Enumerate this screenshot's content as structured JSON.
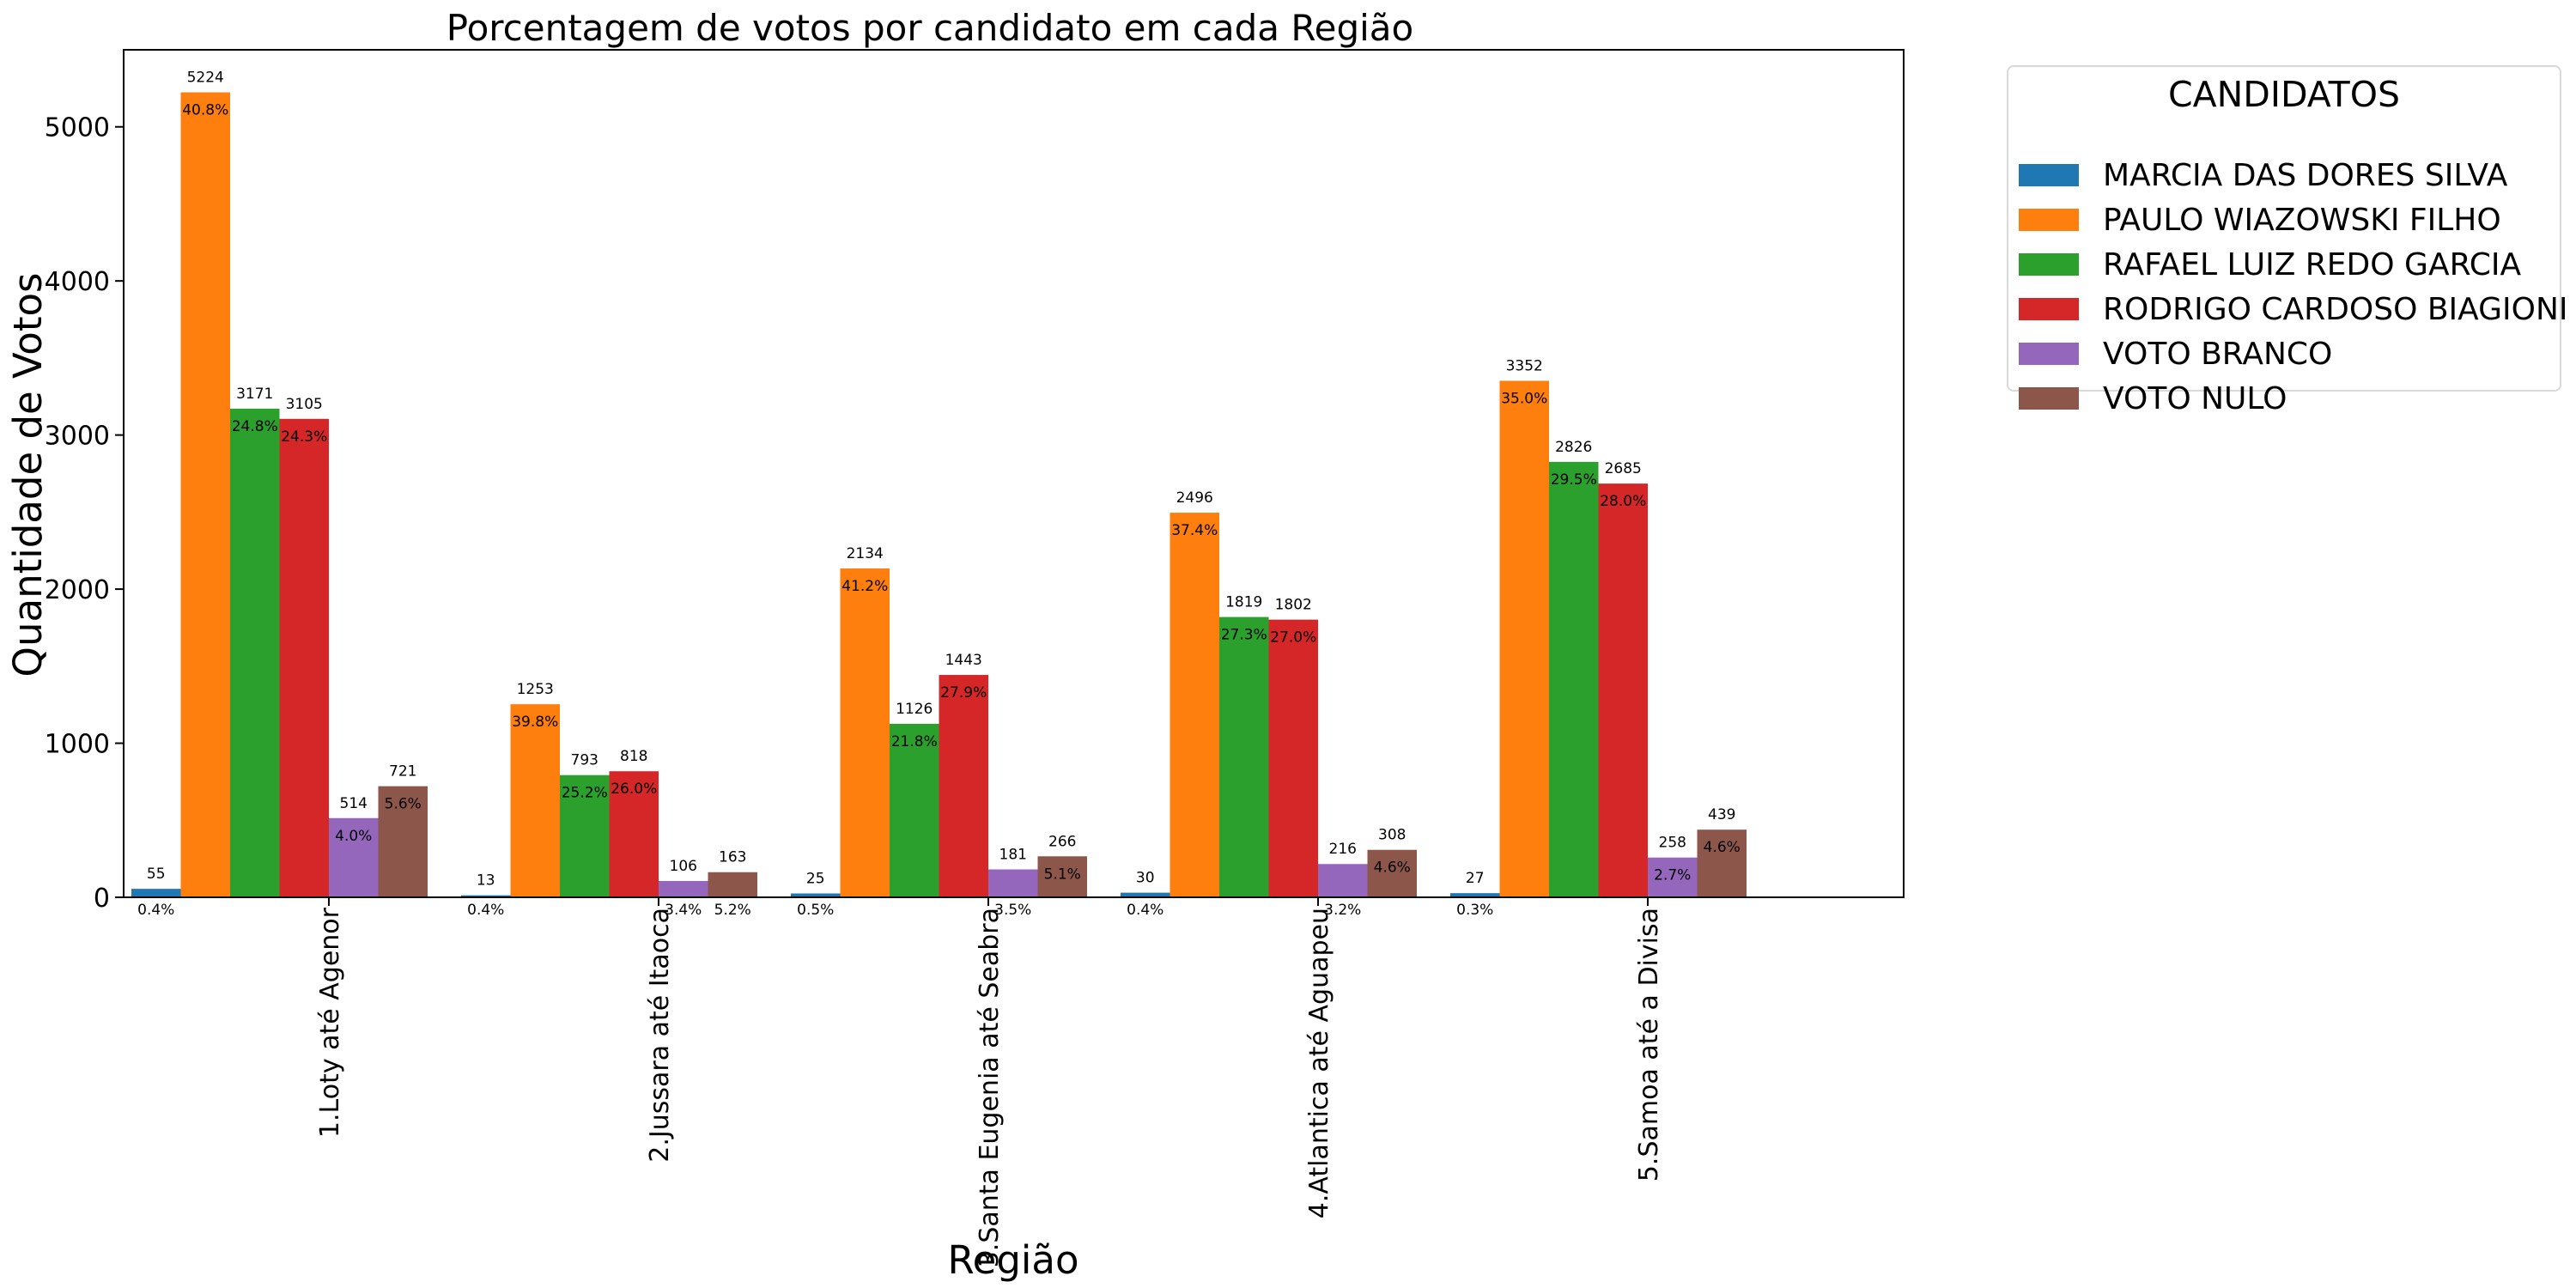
{
  "chart_data": {
    "type": "bar",
    "title": "Porcentagem de votos por candidato em cada Região",
    "xlabel": "Região",
    "ylabel": "Quantidade de Votos",
    "ylim": [
      0,
      5500
    ],
    "yticks": [
      "0",
      "1000",
      "2000",
      "3000",
      "4000",
      "5000"
    ],
    "categories": [
      "1.Loty até Agenor",
      "2.Jussara até Itaoca",
      "3.Santa Eugenia até Seabra",
      "4.Atlantica até Aguapeu",
      "5.Samoa até a Divisa"
    ],
    "legend_title": "CANDIDATOS",
    "legend_placement": "outside-right",
    "grid": false,
    "series": [
      {
        "name": "MARCIA DAS DORES SILVA",
        "color": "#1f77b4",
        "values": [
          55,
          13,
          25,
          30,
          27
        ],
        "percents": [
          "0.4%",
          "0.4%",
          "0.5%",
          "0.4%",
          "0.3%"
        ]
      },
      {
        "name": "PAULO WIAZOWSKI FILHO",
        "color": "#ff7f0e",
        "values": [
          5224,
          1253,
          2134,
          2496,
          3352
        ],
        "percents": [
          "40.8%",
          "39.8%",
          "41.2%",
          "37.4%",
          "35.0%"
        ]
      },
      {
        "name": "RAFAEL LUIZ REDO GARCIA",
        "color": "#2ca02c",
        "values": [
          3171,
          793,
          1126,
          1819,
          2826
        ],
        "percents": [
          "24.8%",
          "25.2%",
          "21.8%",
          "27.3%",
          "29.5%"
        ]
      },
      {
        "name": "RODRIGO CARDOSO BIAGIONI",
        "color": "#d62728",
        "values": [
          3105,
          818,
          1443,
          1802,
          2685
        ],
        "percents": [
          "24.3%",
          "26.0%",
          "27.9%",
          "27.0%",
          "28.0%"
        ]
      },
      {
        "name": "VOTO BRANCO",
        "color": "#9467bd",
        "values": [
          514,
          106,
          181,
          216,
          258
        ],
        "percents": [
          "4.0%",
          "3.4%",
          "3.5%",
          "3.2%",
          "2.7%"
        ]
      },
      {
        "name": "VOTO NULO",
        "color": "#8c564b",
        "values": [
          721,
          163,
          266,
          308,
          439
        ],
        "percents": [
          "5.6%",
          "5.2%",
          "5.1%",
          "4.6%",
          "4.6%"
        ]
      }
    ]
  }
}
